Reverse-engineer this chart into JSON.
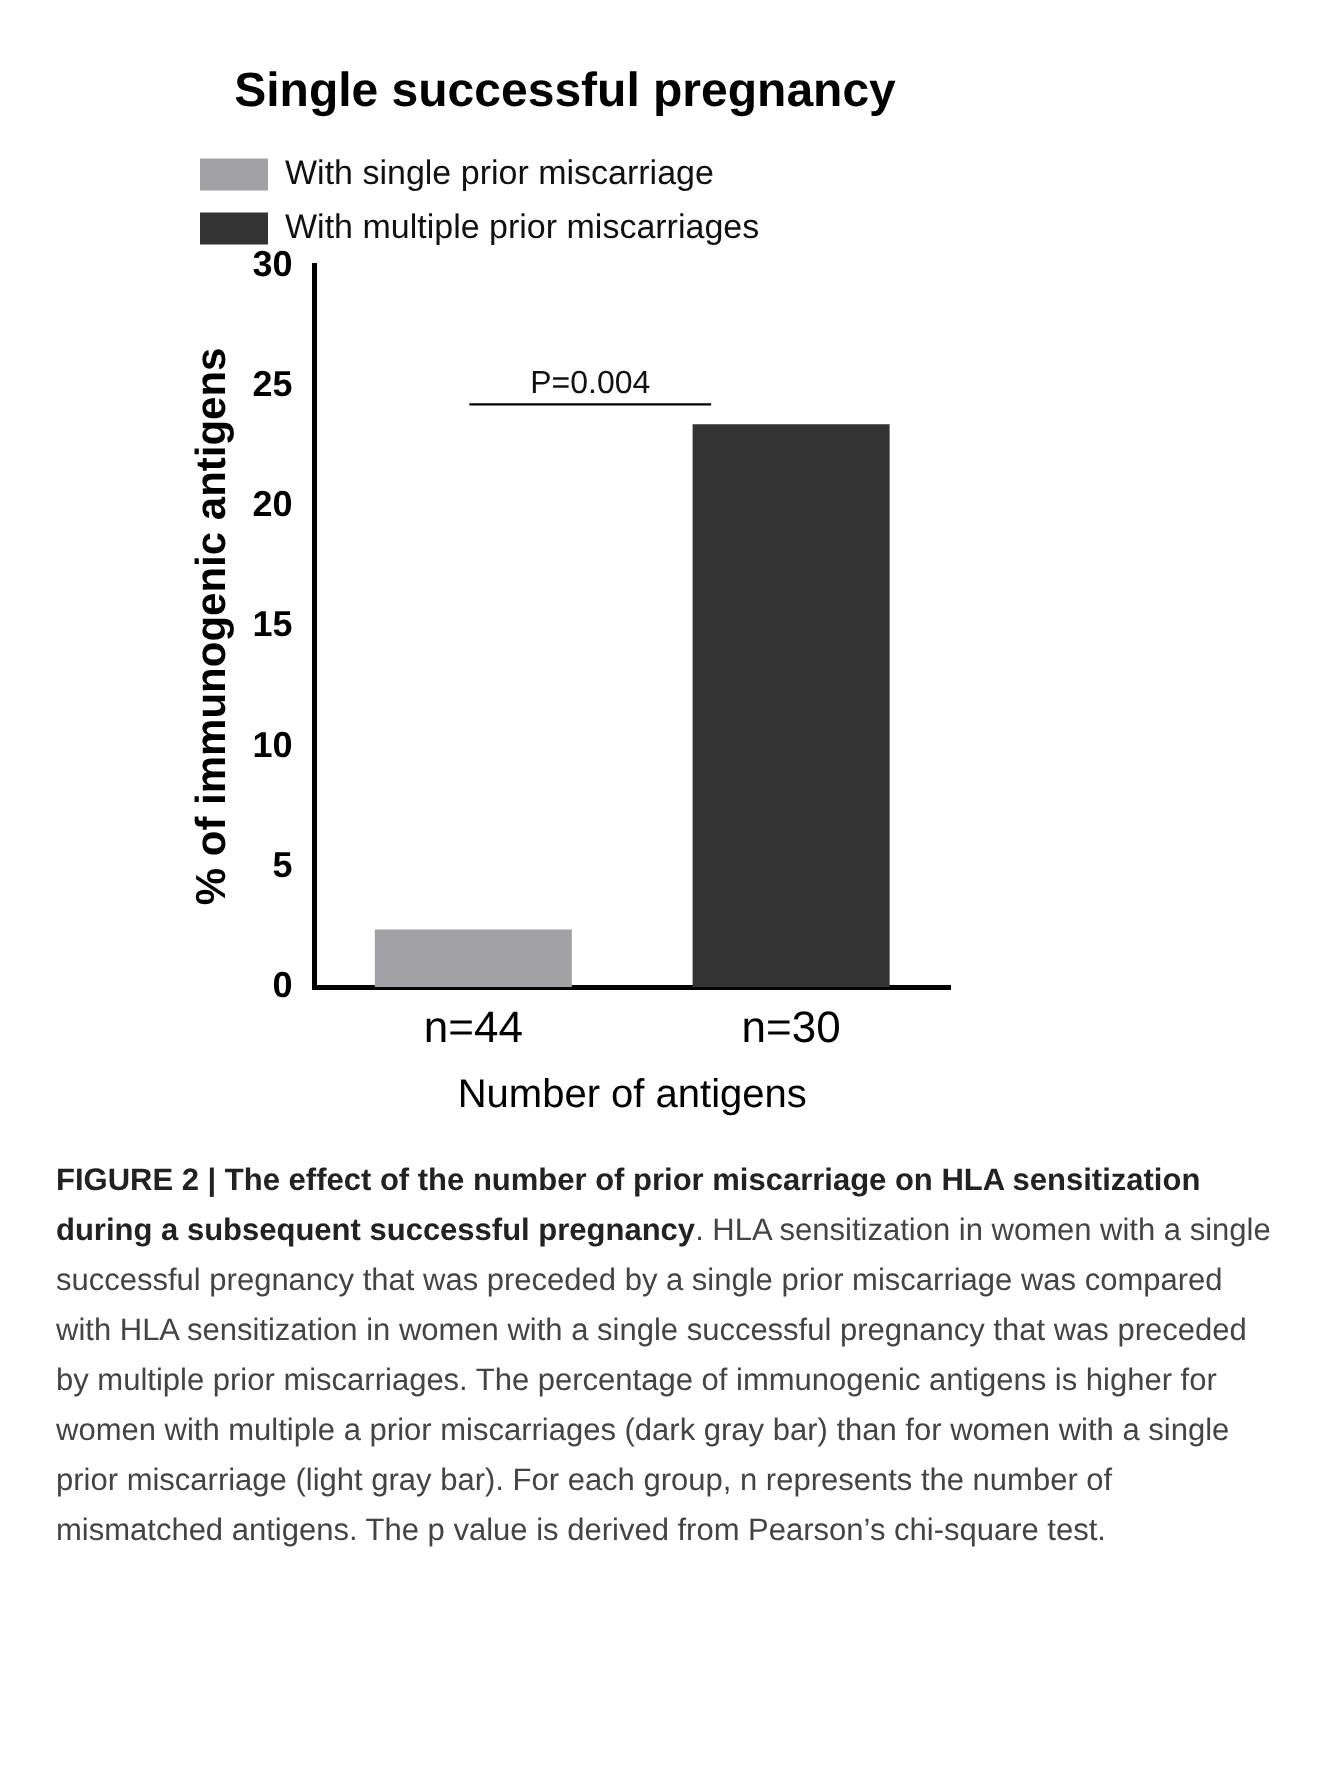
{
  "chart_data": {
    "type": "bar",
    "title": "Single successful pregnancy",
    "xlabel": "Number of antigens",
    "ylabel": "% of immunogenic antigens",
    "categories": [
      "n=44",
      "n=30"
    ],
    "series": [
      {
        "name": "With single prior miscarriage",
        "color": "#a2a1a6",
        "values": [
          2.4,
          null
        ]
      },
      {
        "name": "With multiple prior miscarriages",
        "color": "#333333",
        "values": [
          null,
          23.4
        ]
      }
    ],
    "ylim": [
      0,
      30
    ],
    "yticks": [
      0,
      5,
      10,
      15,
      20,
      25,
      30
    ],
    "grid": false,
    "legend": "top",
    "annotations": [
      "P=0.004",
      "FIGURE 2 | The effect of the number of prior miscarriage on HLA sensitization during a subsequent successful pregnancy",
      ". HLA sensitization in women with a single successful pregnancy that was preceded by a single prior miscarriage was compared with HLA sensitization in women with a single successful pregnancy that was preceded by multiple prior miscarriages. The percentage of immunogenic antigens is higher for women with multiple a prior miscarriages (dark gray bar) than for women with a single prior miscarriage (light gray bar). For each group, n represents the number of mismatched antigens. The p value is derived from Pearson’s chi-square test."
    ]
  }
}
